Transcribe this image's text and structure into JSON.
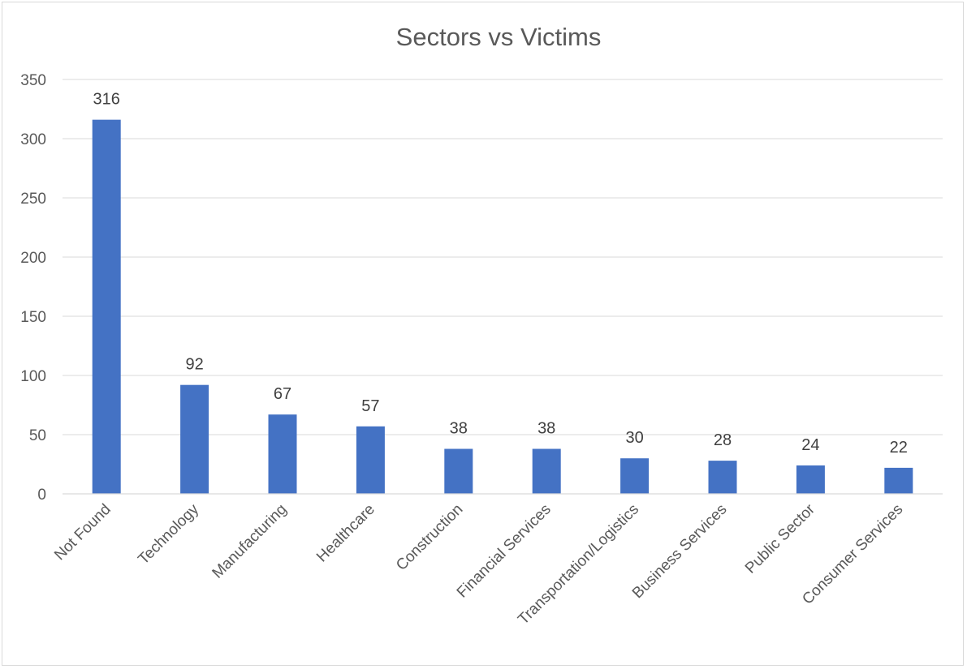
{
  "chart_data": {
    "type": "bar",
    "title": "Sectors vs Victims",
    "xlabel": "",
    "ylabel": "",
    "categories": [
      "Not Found",
      "Technology",
      "Manufacturing",
      "Healthcare",
      "Construction",
      "Financial Services",
      "Transportation/Logistics",
      "Business Services",
      "Public Sector",
      "Consumer Services"
    ],
    "values": [
      316,
      92,
      67,
      57,
      38,
      38,
      30,
      28,
      24,
      22
    ],
    "data_labels": [
      "316",
      "92",
      "67",
      "57",
      "38",
      "38",
      "30",
      "28",
      "24",
      "22"
    ],
    "ylim": [
      0,
      350
    ],
    "yticks": [
      0,
      50,
      100,
      150,
      200,
      250,
      300,
      350
    ],
    "ytick_labels": [
      "0",
      "50",
      "100",
      "150",
      "200",
      "250",
      "300",
      "350"
    ],
    "grid": true,
    "legend": "none",
    "bar_color": "#4472c4"
  }
}
